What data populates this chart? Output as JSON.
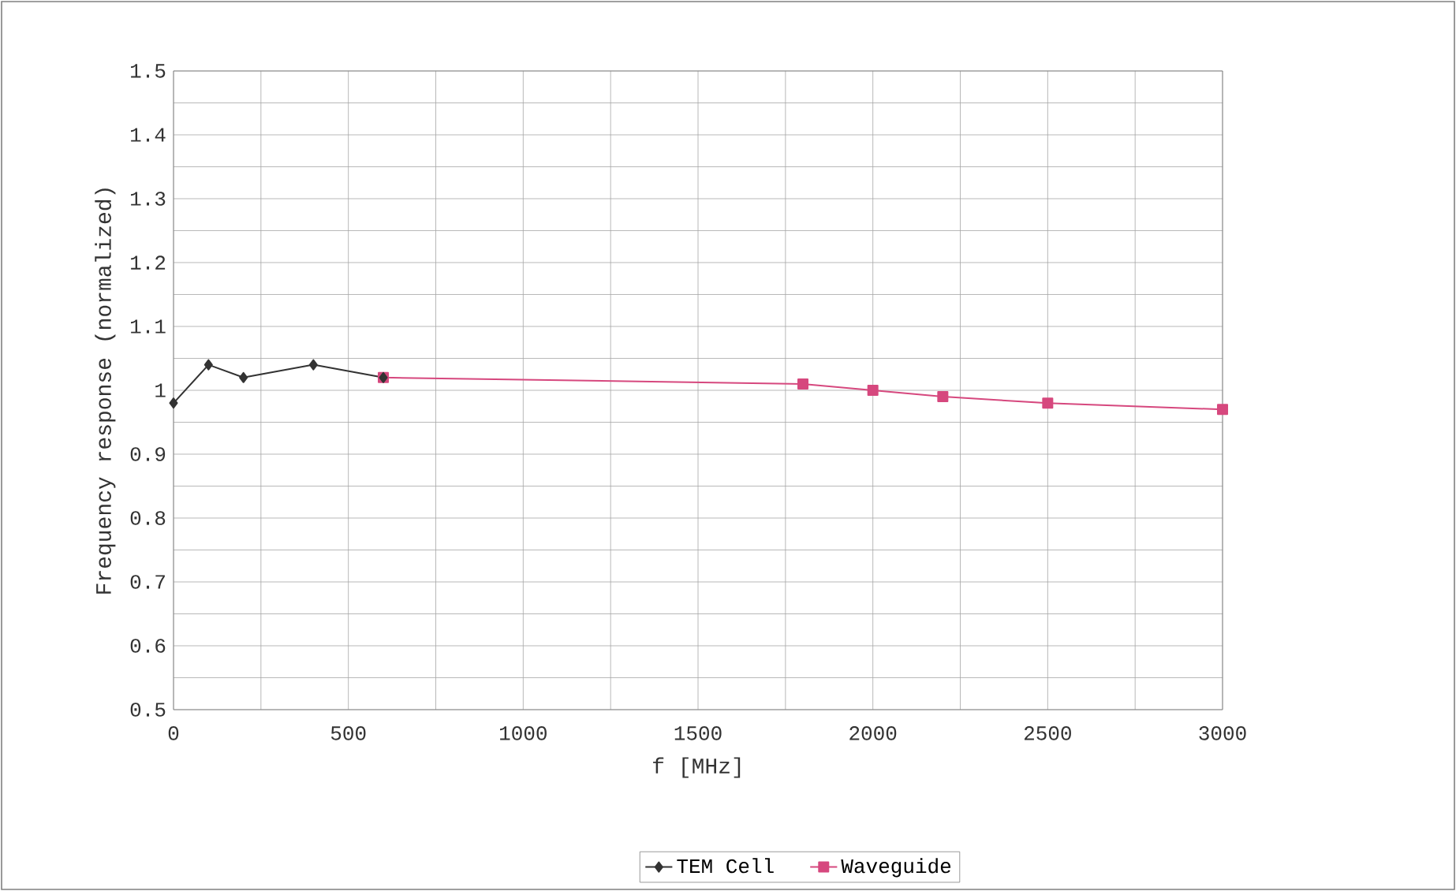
{
  "chart_data": {
    "type": "line",
    "xlabel": "f [MHz]",
    "ylabel": "Frequency response (normalized)",
    "xlim": [
      0,
      3000
    ],
    "xticks": [
      0,
      500,
      1000,
      1500,
      2000,
      2500,
      3000
    ],
    "ylim": [
      0.5,
      1.5
    ],
    "yticks": [
      {
        "value": 0.5,
        "label": "0.5"
      },
      {
        "value": 0.6,
        "label": "0.6"
      },
      {
        "value": 0.7,
        "label": "0.7"
      },
      {
        "value": 0.8,
        "label": "0.8"
      },
      {
        "value": 0.9,
        "label": "0.9"
      },
      {
        "value": 1,
        "label": "1"
      },
      {
        "value": 1.1,
        "label": "1.1"
      },
      {
        "value": 1.2,
        "label": "1.2"
      },
      {
        "value": 1.3,
        "label": "1.3"
      },
      {
        "value": 1.4,
        "label": "1.4"
      },
      {
        "value": 1.5,
        "label": "1.5"
      }
    ],
    "grid": true,
    "legend": "bottom",
    "line_style": "solid",
    "series": [
      {
        "name": "TEM Cell",
        "color": "#333333",
        "marker": "diamond",
        "x": [
          0,
          100,
          200,
          400,
          600
        ],
        "values": [
          0.98,
          1.04,
          1.02,
          1.04,
          1.02
        ]
      },
      {
        "name": "Waveguide",
        "color": "#d6487e",
        "marker": "square",
        "x": [
          600,
          1800,
          2000,
          2200,
          2500,
          3000
        ],
        "values": [
          1.02,
          1.01,
          1.0,
          0.99,
          0.98,
          0.97
        ]
      }
    ]
  }
}
